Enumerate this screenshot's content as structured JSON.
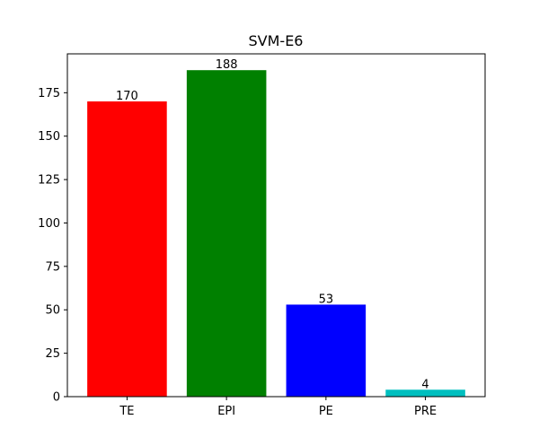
{
  "chart_data": {
    "type": "bar",
    "title": "SVM-E6",
    "xlabel": "",
    "ylabel": "",
    "categories": [
      "TE",
      "EPI",
      "PE",
      "PRE"
    ],
    "values": [
      170,
      188,
      53,
      4
    ],
    "data_labels": [
      "170",
      "188",
      "53",
      "4"
    ],
    "colors": [
      "#ff0000",
      "#008000",
      "#0000ff",
      "#00bfbf"
    ],
    "ylim": [
      0,
      197.4
    ],
    "yticks": [
      0,
      25,
      50,
      75,
      100,
      125,
      150,
      175
    ],
    "ytick_labels": [
      "0",
      "25",
      "50",
      "75",
      "100",
      "125",
      "150",
      "175"
    ],
    "grid": false,
    "legend": "none"
  }
}
